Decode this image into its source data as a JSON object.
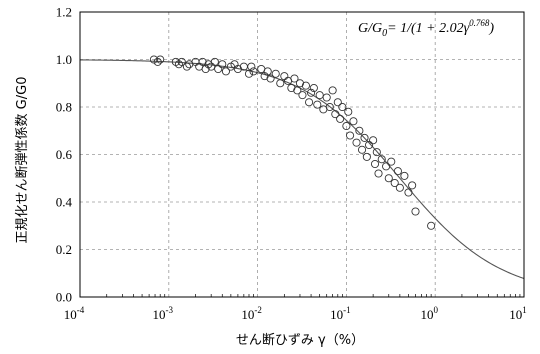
{
  "chart_data": {
    "type": "scatter",
    "title": "",
    "xlabel": "せん断ひずみ γ（%）",
    "ylabel": "正規化せん断弾性係数 G/G0",
    "x_scale": "log",
    "xlim": [
      0.0001,
      10
    ],
    "ylim": [
      0,
      1.2
    ],
    "x_ticks": [
      0.0001,
      0.001,
      0.01,
      0.1,
      1,
      10
    ],
    "x_tick_labels": [
      {
        "base": "10",
        "exp": "-4"
      },
      {
        "base": "10",
        "exp": "-3"
      },
      {
        "base": "10",
        "exp": "-2"
      },
      {
        "base": "10",
        "exp": "-1"
      },
      {
        "base": "10",
        "exp": "0"
      },
      {
        "base": "10",
        "exp": "1"
      }
    ],
    "y_ticks": [
      0.0,
      0.2,
      0.4,
      0.6,
      0.8,
      1.0,
      1.2
    ],
    "y_tick_labels": [
      "0.0",
      "0.2",
      "0.4",
      "0.6",
      "0.8",
      "1.0",
      "1.2"
    ],
    "grid": true,
    "grid_style": "dashed",
    "legend": "none",
    "annotation": {
      "lhs": "G/G",
      "lhs_sub": "0",
      "rhs_prefix": "= 1/(1 + 2.02γ",
      "rhs_exp": "0.768",
      "rhs_suffix": ")",
      "position": "top-right"
    },
    "fit_curve": {
      "a": 2.02,
      "b": 0.768,
      "color": "#555555"
    },
    "marker_color": "#333333",
    "points": [
      {
        "x": 0.00068,
        "y": 1.0
      },
      {
        "x": 0.00075,
        "y": 0.99
      },
      {
        "x": 0.0008,
        "y": 1.0
      },
      {
        "x": 0.0012,
        "y": 0.99
      },
      {
        "x": 0.0013,
        "y": 0.98
      },
      {
        "x": 0.0014,
        "y": 0.99
      },
      {
        "x": 0.0016,
        "y": 0.97
      },
      {
        "x": 0.0017,
        "y": 0.98
      },
      {
        "x": 0.002,
        "y": 0.99
      },
      {
        "x": 0.0022,
        "y": 0.97
      },
      {
        "x": 0.0024,
        "y": 0.99
      },
      {
        "x": 0.0026,
        "y": 0.96
      },
      {
        "x": 0.0028,
        "y": 0.98
      },
      {
        "x": 0.003,
        "y": 0.97
      },
      {
        "x": 0.0033,
        "y": 0.99
      },
      {
        "x": 0.0036,
        "y": 0.96
      },
      {
        "x": 0.004,
        "y": 0.98
      },
      {
        "x": 0.0044,
        "y": 0.95
      },
      {
        "x": 0.005,
        "y": 0.97
      },
      {
        "x": 0.0055,
        "y": 0.98
      },
      {
        "x": 0.006,
        "y": 0.96
      },
      {
        "x": 0.007,
        "y": 0.97
      },
      {
        "x": 0.008,
        "y": 0.94
      },
      {
        "x": 0.0085,
        "y": 0.97
      },
      {
        "x": 0.009,
        "y": 0.95
      },
      {
        "x": 0.011,
        "y": 0.96
      },
      {
        "x": 0.012,
        "y": 0.93
      },
      {
        "x": 0.013,
        "y": 0.95
      },
      {
        "x": 0.014,
        "y": 0.92
      },
      {
        "x": 0.016,
        "y": 0.94
      },
      {
        "x": 0.018,
        "y": 0.9
      },
      {
        "x": 0.02,
        "y": 0.93
      },
      {
        "x": 0.022,
        "y": 0.91
      },
      {
        "x": 0.024,
        "y": 0.88
      },
      {
        "x": 0.026,
        "y": 0.92
      },
      {
        "x": 0.028,
        "y": 0.87
      },
      {
        "x": 0.03,
        "y": 0.9
      },
      {
        "x": 0.032,
        "y": 0.85
      },
      {
        "x": 0.035,
        "y": 0.89
      },
      {
        "x": 0.038,
        "y": 0.82
      },
      {
        "x": 0.04,
        "y": 0.86
      },
      {
        "x": 0.043,
        "y": 0.88
      },
      {
        "x": 0.047,
        "y": 0.81
      },
      {
        "x": 0.05,
        "y": 0.85
      },
      {
        "x": 0.055,
        "y": 0.79
      },
      {
        "x": 0.06,
        "y": 0.84
      },
      {
        "x": 0.065,
        "y": 0.8
      },
      {
        "x": 0.07,
        "y": 0.87
      },
      {
        "x": 0.075,
        "y": 0.77
      },
      {
        "x": 0.08,
        "y": 0.82
      },
      {
        "x": 0.085,
        "y": 0.75
      },
      {
        "x": 0.09,
        "y": 0.8
      },
      {
        "x": 0.1,
        "y": 0.72
      },
      {
        "x": 0.105,
        "y": 0.78
      },
      {
        "x": 0.11,
        "y": 0.68
      },
      {
        "x": 0.12,
        "y": 0.74
      },
      {
        "x": 0.13,
        "y": 0.65
      },
      {
        "x": 0.14,
        "y": 0.7
      },
      {
        "x": 0.15,
        "y": 0.62
      },
      {
        "x": 0.16,
        "y": 0.67
      },
      {
        "x": 0.17,
        "y": 0.59
      },
      {
        "x": 0.18,
        "y": 0.64
      },
      {
        "x": 0.2,
        "y": 0.66
      },
      {
        "x": 0.21,
        "y": 0.56
      },
      {
        "x": 0.22,
        "y": 0.61
      },
      {
        "x": 0.23,
        "y": 0.52
      },
      {
        "x": 0.25,
        "y": 0.58
      },
      {
        "x": 0.28,
        "y": 0.55
      },
      {
        "x": 0.3,
        "y": 0.5
      },
      {
        "x": 0.32,
        "y": 0.57
      },
      {
        "x": 0.35,
        "y": 0.48
      },
      {
        "x": 0.38,
        "y": 0.53
      },
      {
        "x": 0.4,
        "y": 0.46
      },
      {
        "x": 0.45,
        "y": 0.51
      },
      {
        "x": 0.5,
        "y": 0.44
      },
      {
        "x": 0.55,
        "y": 0.47
      },
      {
        "x": 0.6,
        "y": 0.36
      },
      {
        "x": 0.9,
        "y": 0.3
      }
    ]
  }
}
